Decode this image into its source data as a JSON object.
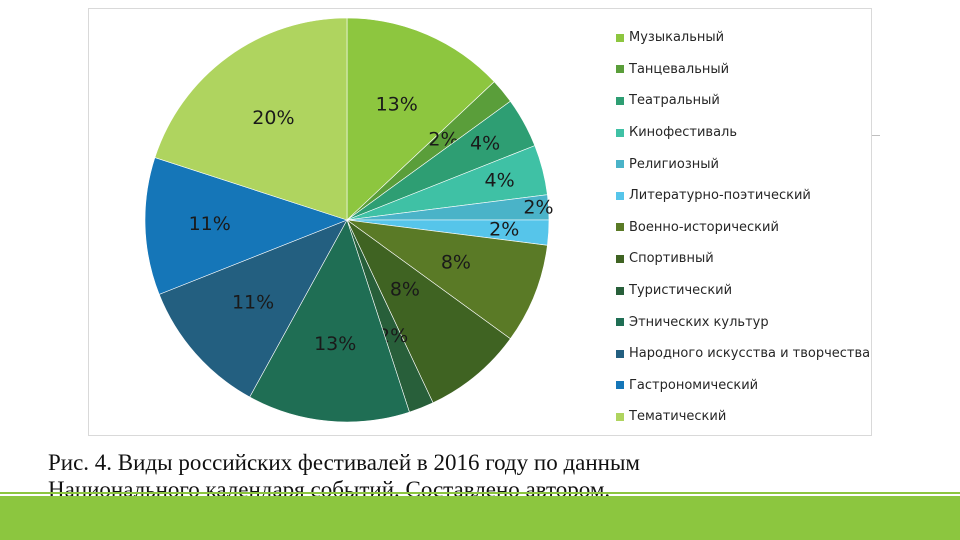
{
  "chart_data": {
    "type": "pie",
    "legend_position": "right",
    "categories": [
      "Музыкальный",
      "Танцевальный",
      "Театральный",
      "Кинофестиваль",
      "Религиозный",
      "Литературно-поэтический",
      "Военно-исторический",
      "Спортивный",
      "Туристический",
      "Этнических культур",
      "Народного искусства и творчества",
      "Гастрономический",
      "Тематический"
    ],
    "values": [
      13,
      2,
      4,
      4,
      2,
      2,
      8,
      8,
      2,
      13,
      11,
      11,
      20
    ],
    "value_labels": [
      "13%",
      "2%",
      "4%",
      "4%",
      "2%",
      "2%",
      "8%",
      "8%",
      "2%",
      "13%",
      "11%",
      "11%",
      "20%"
    ],
    "colors": [
      "#8dc63f",
      "#5a9e3a",
      "#2e9e73",
      "#3fc1a5",
      "#4ab3c8",
      "#56c5ea",
      "#5a7a26",
      "#3f6322",
      "#285f3a",
      "#1f6e54",
      "#235f80",
      "#1576b8",
      "#afd45f"
    ]
  },
  "caption": {
    "line1": "Рис. 4. Виды российских фестивалей в 2016 году по данным",
    "line2": "Национального календаря событий. Составлено автором."
  }
}
